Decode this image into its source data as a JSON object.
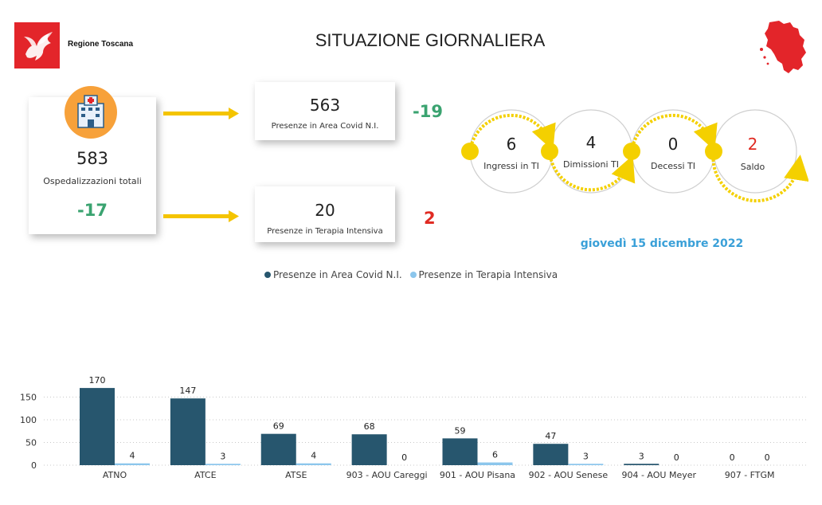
{
  "header": {
    "logo_text": "Regione Toscana",
    "title": "SITUAZIONE GIORNALIERA",
    "logo_icon": "pegasus-icon",
    "map_icon": "tuscany-map-icon",
    "logo_color": "#e3252a"
  },
  "kpi": {
    "total_hospitalizations": {
      "value": "583",
      "label": "Ospedalizzazioni totali",
      "delta": "-17",
      "icon": "hospital-icon"
    },
    "covid_area": {
      "value": "563",
      "label": "Presenze in Area Covid N.I.",
      "delta": "-19"
    },
    "intensive_care": {
      "value": "20",
      "label": "Presenze in Terapia Intensiva",
      "delta": "2"
    }
  },
  "flow": {
    "items": [
      {
        "value": "6",
        "label": "Ingressi in TI"
      },
      {
        "value": "4",
        "label": "Dimissioni TI"
      },
      {
        "value": "0",
        "label": "Decessi TI"
      },
      {
        "value": "2",
        "label": "Saldo"
      }
    ],
    "accent": "#f4d000"
  },
  "report_date": "giovedì 15 dicembre 2022",
  "colors": {
    "positive": "#3aa370",
    "negative": "#e02b23",
    "covid_series": "#27566e",
    "ti_series": "#8cc6ec",
    "date": "#3aa0d8"
  },
  "chart_data": {
    "type": "bar",
    "categories": [
      "ATNO",
      "ATCE",
      "ATSE",
      "903 - AOU Careggi",
      "901 - AOU Pisana",
      "902 - AOU Senese",
      "904 - AOU Meyer",
      "907 - FTGM"
    ],
    "series": [
      {
        "name": "Presenze in Area Covid N.I.",
        "values": [
          170,
          147,
          69,
          68,
          59,
          47,
          3,
          0
        ],
        "color": "#27566e"
      },
      {
        "name": "Presenze in Terapia Intensiva",
        "values": [
          4,
          3,
          4,
          0,
          6,
          3,
          0,
          0
        ],
        "color": "#8cc6ec"
      }
    ],
    "yticks": [
      0,
      50,
      100,
      150
    ],
    "ylim": [
      0,
      175
    ],
    "grid": true,
    "legend_position": "top-center",
    "data_labels": true
  }
}
